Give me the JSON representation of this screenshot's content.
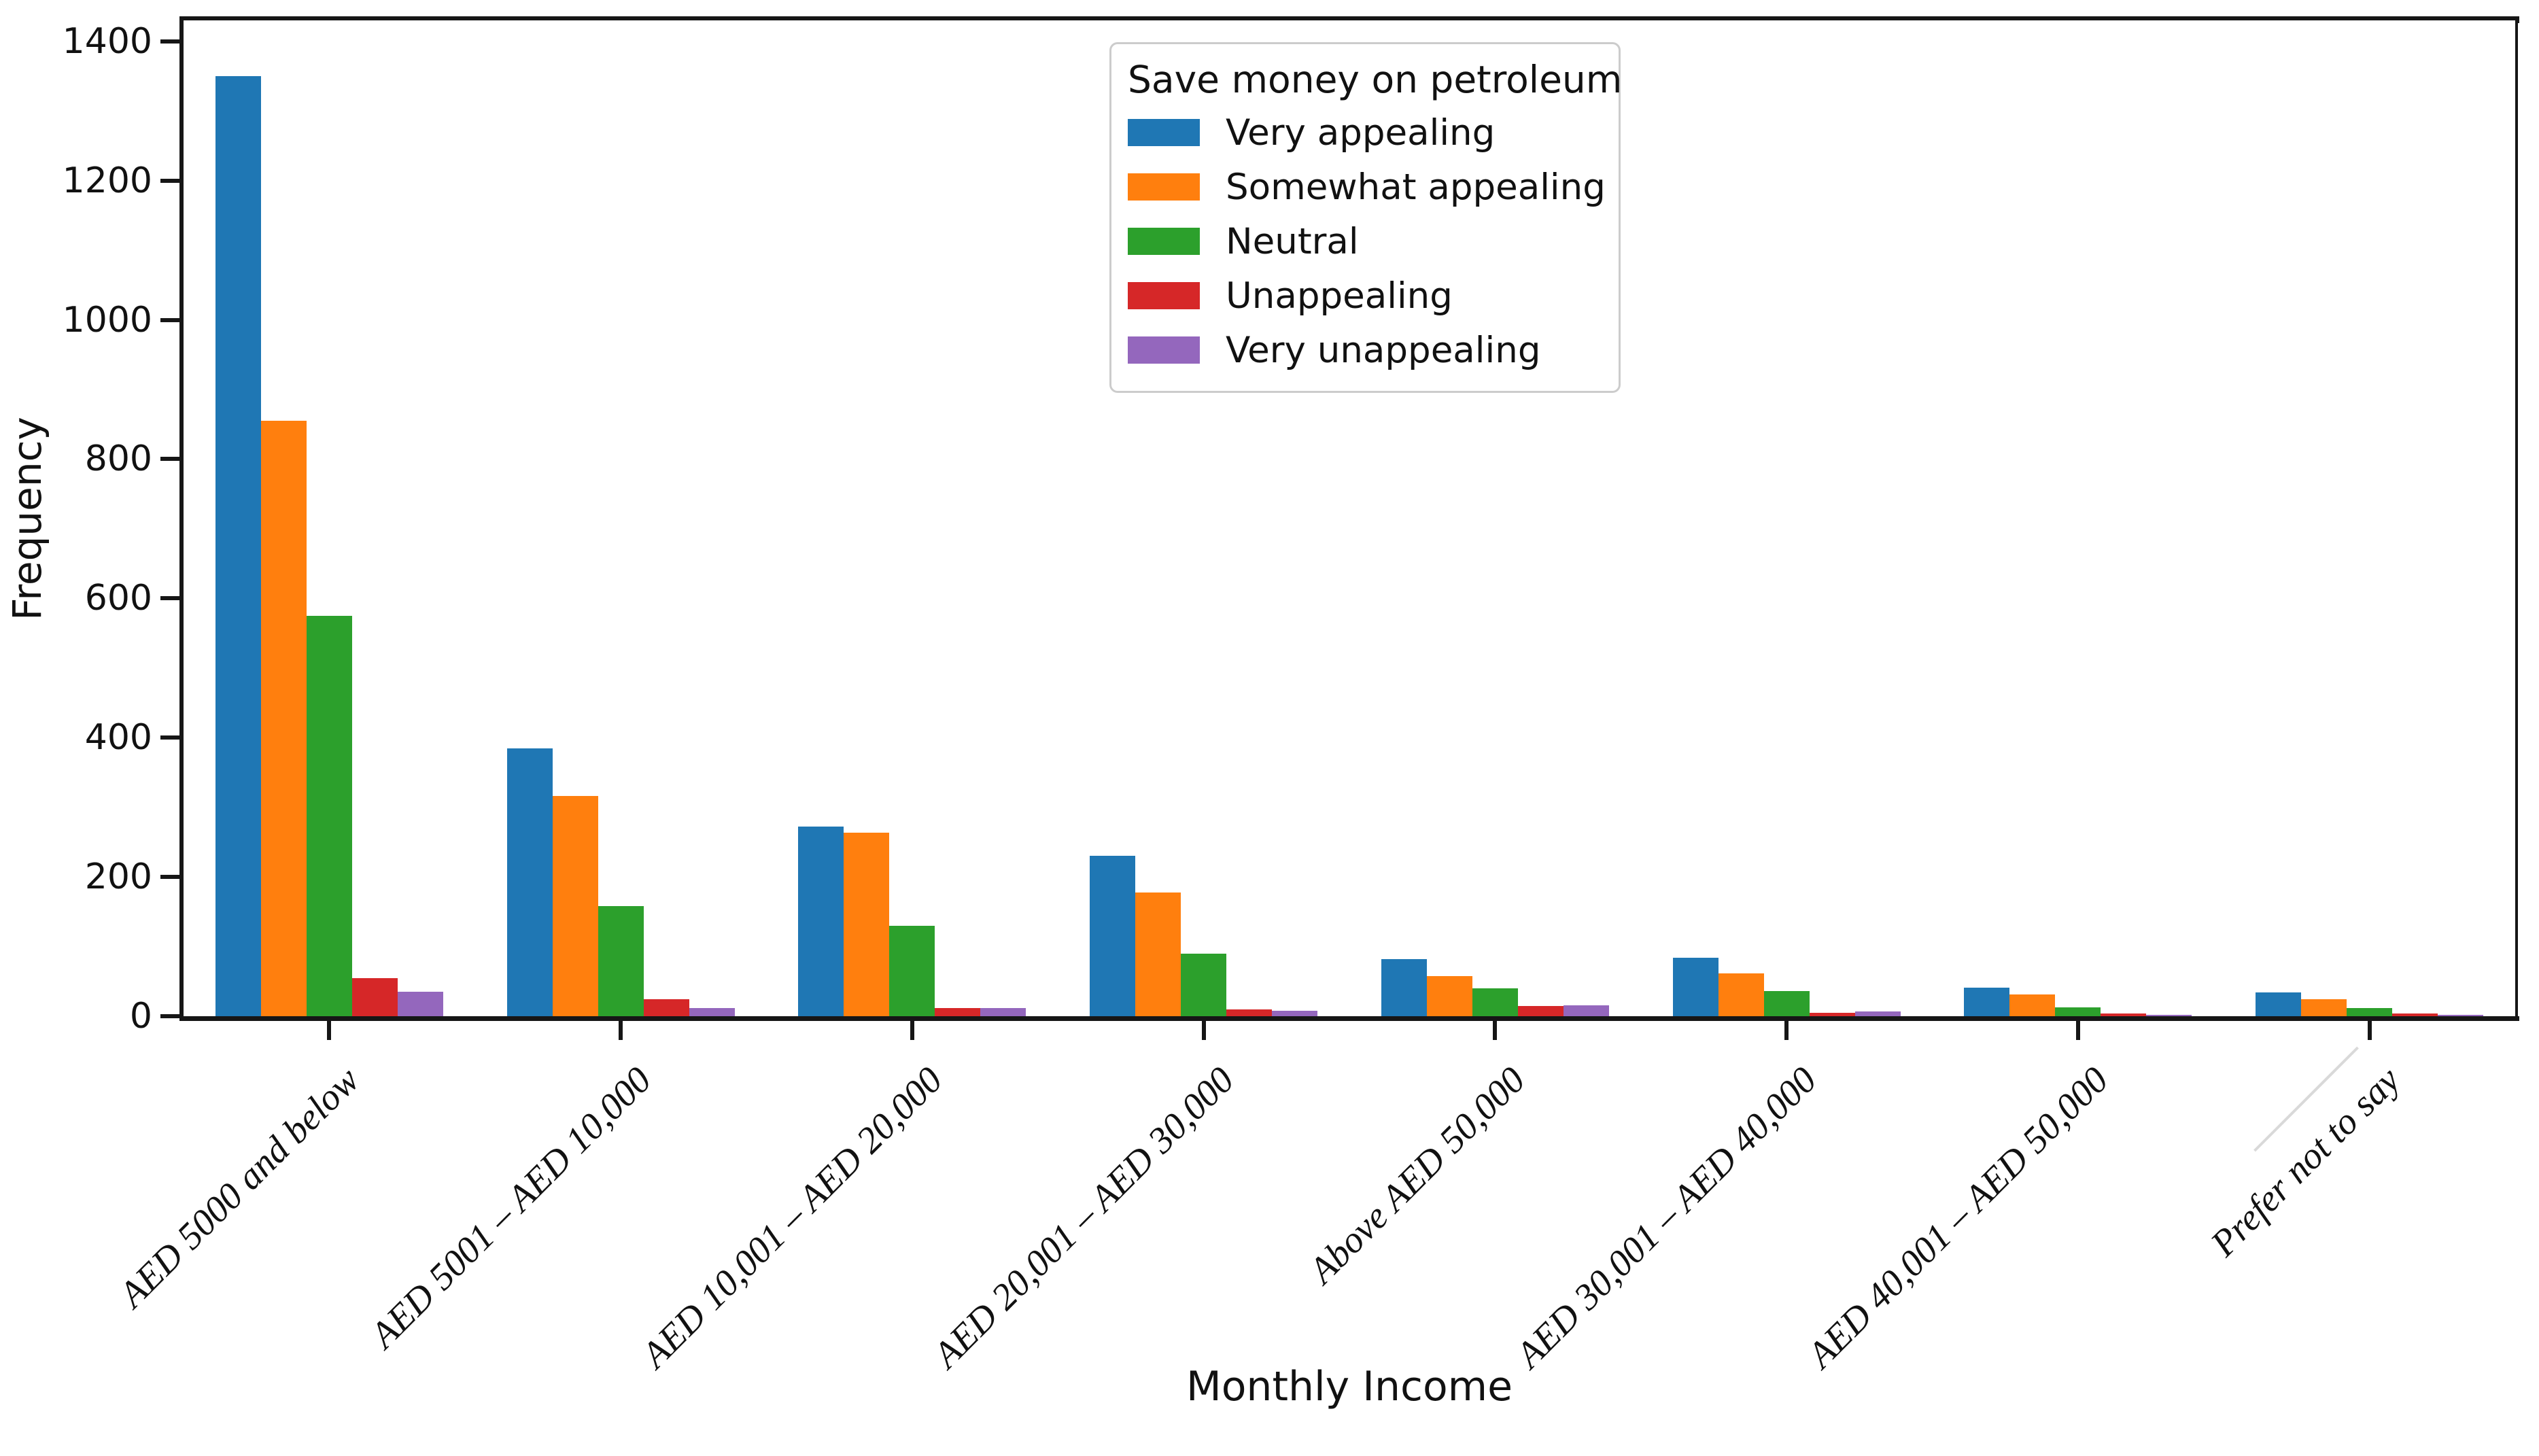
{
  "chart_data": {
    "type": "bar",
    "title": "",
    "xlabel": "Monthly Income",
    "ylabel": "Frequency",
    "categories": [
      "AED 5000 and below",
      "AED 5001 – AED 10,000",
      "AED 10,001 – AED 20,000",
      "AED 20,001 – AED 30,000",
      "Above AED 50,000",
      "AED 30,001 – AED 40,000",
      "AED 40,001 – AED 50,000",
      "Prefer not to say"
    ],
    "series": [
      {
        "name": "Very appealing",
        "color": "#1f77b4",
        "values": [
          1350,
          385,
          272,
          230,
          82,
          84,
          41,
          34
        ]
      },
      {
        "name": "Somewhat appealing",
        "color": "#ff7f0e",
        "values": [
          855,
          316,
          264,
          178,
          58,
          62,
          31,
          24
        ]
      },
      {
        "name": "Neutral",
        "color": "#2ca02c",
        "values": [
          575,
          158,
          130,
          90,
          40,
          36,
          13,
          12
        ]
      },
      {
        "name": "Unappealing",
        "color": "#d62728",
        "values": [
          55,
          24,
          12,
          10,
          15,
          5,
          4,
          4
        ]
      },
      {
        "name": "Very unappealing",
        "color": "#9467bd",
        "values": [
          35,
          12,
          12,
          8,
          16,
          7,
          2,
          1
        ]
      }
    ],
    "legend": {
      "title": "Save money on petroleum",
      "position": "upper center"
    },
    "ylim": [
      0,
      1430
    ],
    "yticks": [
      0,
      200,
      400,
      600,
      800,
      1000,
      1200,
      1400
    ],
    "xtick_rotation": 45,
    "grid": false,
    "background": "#ffffff",
    "text_color": "#111111"
  }
}
